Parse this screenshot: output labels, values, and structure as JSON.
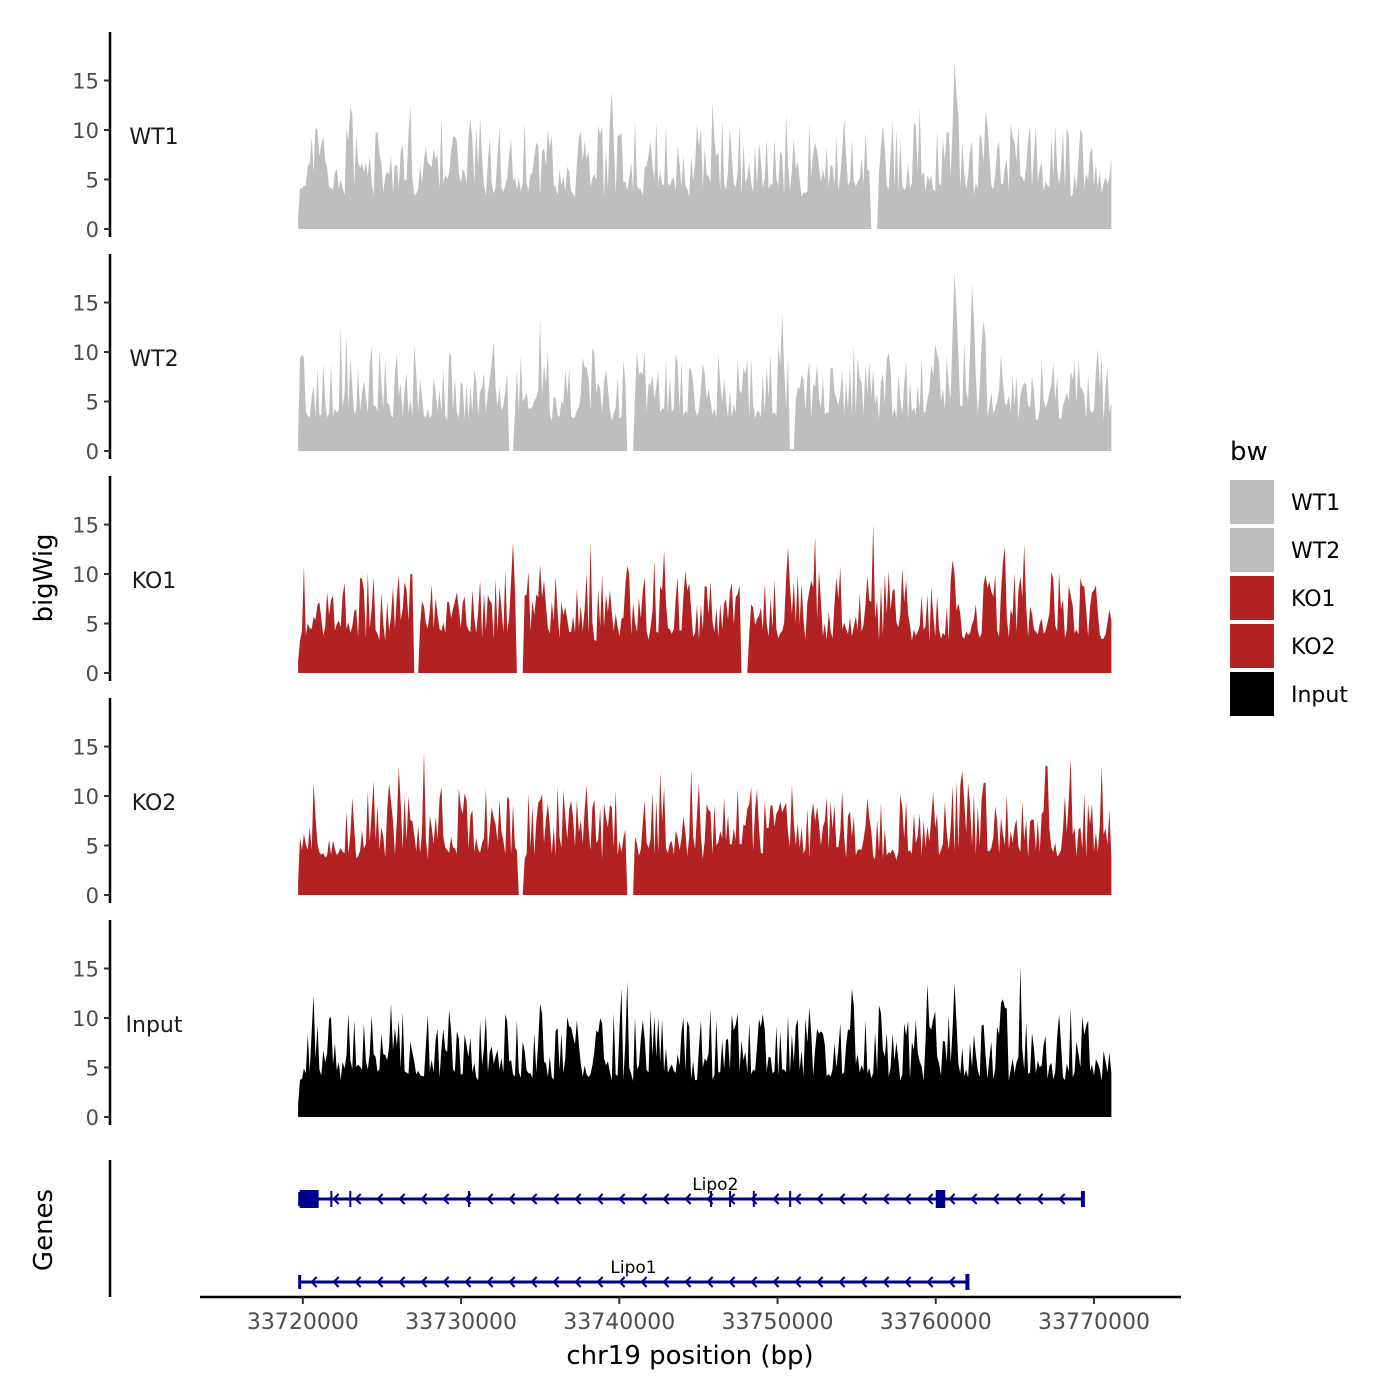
{
  "chart_data": {
    "type": "area",
    "chromosome": "chr19",
    "xlabel": "chr19 position (bp)",
    "ylabel": "bigWig",
    "genes_label": "Genes",
    "xlim": [
      33713500,
      33775500
    ],
    "x_ticks": [
      33720000,
      33730000,
      33740000,
      33750000,
      33760000,
      33770000
    ],
    "x_tick_labels": [
      "33720000",
      "33730000",
      "33740000",
      "33750000",
      "33760000",
      "33770000"
    ],
    "data_range": [
      33719700,
      33771100
    ],
    "ylim": [
      0,
      19.5
    ],
    "y_ticks": [
      0,
      5,
      10,
      15
    ],
    "y_tick_labels": [
      "0",
      "5",
      "10",
      "15"
    ],
    "legend": {
      "title": "bw",
      "entries": [
        {
          "label": "WT1",
          "color": "#bebebe"
        },
        {
          "label": "WT2",
          "color": "#bebebe"
        },
        {
          "label": "KO1",
          "color": "#b22222"
        },
        {
          "label": "KO2",
          "color": "#b22222"
        },
        {
          "label": "Input",
          "color": "#000000"
        }
      ]
    },
    "series": [
      {
        "name": "WT1",
        "color": "#bebebe",
        "seed": 11,
        "base": 3.2,
        "noise": 4.5,
        "peaks": [
          [
            33723000,
            12.5
          ],
          [
            33729500,
            9.5
          ],
          [
            33742000,
            8
          ],
          [
            33754200,
            11.5
          ],
          [
            33761200,
            17.5
          ],
          [
            33763200,
            13
          ],
          [
            33765000,
            9
          ]
        ],
        "dips": [
          [
            33756100,
            0
          ]
        ]
      },
      {
        "name": "WT2",
        "color": "#bebebe",
        "seed": 23,
        "base": 3.0,
        "noise": 4.2,
        "peaks": [
          [
            33719900,
            11
          ],
          [
            33741500,
            8
          ],
          [
            33757000,
            10
          ],
          [
            33761200,
            19
          ],
          [
            33762300,
            17.5
          ],
          [
            33763000,
            14
          ],
          [
            33760000,
            12
          ]
        ],
        "dips": [
          [
            33733200,
            0
          ],
          [
            33740700,
            0
          ],
          [
            33750900,
            0.2
          ]
        ]
      },
      {
        "name": "KO1",
        "color": "#b22222",
        "seed": 37,
        "base": 3.2,
        "noise": 4.2,
        "peaks": [
          [
            33729700,
            8.5
          ],
          [
            33735000,
            11
          ],
          [
            33740500,
            11
          ],
          [
            33742800,
            9.8
          ],
          [
            33752100,
            10
          ],
          [
            33761100,
            12.7
          ],
          [
            33764300,
            12
          ],
          [
            33769900,
            8.5
          ]
        ],
        "dips": [
          [
            33727200,
            0
          ],
          [
            33733700,
            0
          ],
          [
            33747900,
            0
          ]
        ]
      },
      {
        "name": "KO2",
        "color": "#b22222",
        "seed": 51,
        "base": 3.5,
        "noise": 4.3,
        "peaks": [
          [
            33728700,
            11.5
          ],
          [
            33730200,
            11
          ],
          [
            33735500,
            9.5
          ],
          [
            33750000,
            9.5
          ],
          [
            33761700,
            13
          ],
          [
            33763000,
            12
          ],
          [
            33767000,
            14
          ]
        ],
        "dips": [
          [
            33733800,
            0
          ],
          [
            33740700,
            0
          ]
        ]
      },
      {
        "name": "Input",
        "color": "#000000",
        "seed": 67,
        "base": 3.6,
        "noise": 4.3,
        "peaks": [
          [
            33721700,
            11
          ],
          [
            33735000,
            11.5
          ],
          [
            33738600,
            10
          ],
          [
            33754700,
            13
          ],
          [
            33759800,
            11
          ],
          [
            33761200,
            13.8
          ],
          [
            33764300,
            13.8
          ],
          [
            33767800,
            10.5
          ]
        ],
        "dips": []
      }
    ],
    "genes": [
      {
        "name": "Lipo2",
        "start": 33719800,
        "end": 33769300,
        "strand": "-",
        "exons": [
          [
            33719800,
            33721000
          ],
          [
            33760000,
            33760600
          ]
        ],
        "marks": [
          33721800,
          33723000,
          33730500,
          33745800,
          33747000,
          33748500,
          33750800,
          33760500
        ]
      },
      {
        "name": "Lipo1",
        "start": 33719800,
        "end": 33762000,
        "strand": "-",
        "exons": [],
        "marks": []
      }
    ]
  }
}
